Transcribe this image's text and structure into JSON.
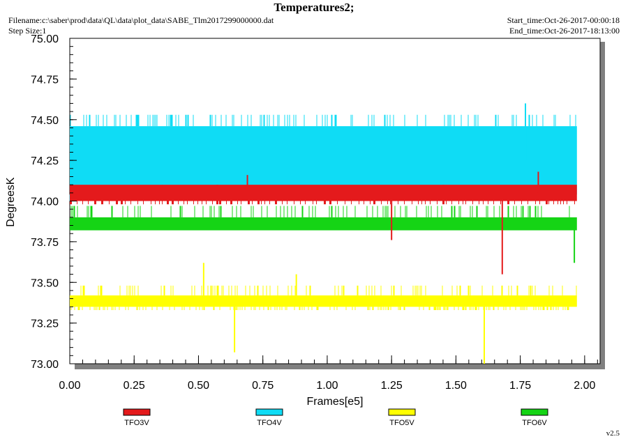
{
  "header": {
    "title": "Temperatures2;",
    "filename": "Filename:c:\\saber\\prod\\data\\QL\\data\\plot_data\\SABE_Tlm2017299000000.dat",
    "step_size": "Step Size:1",
    "start_time": "Start_time:Oct-26-2017-00:00:18",
    "end_time": "End_time:Oct-26-2017-18:13:00",
    "version": "v2.5"
  },
  "chart_data": {
    "type": "line",
    "xlabel": "Frames[e5]",
    "ylabel": "DegreesK",
    "xlim": [
      0.0,
      2.06
    ],
    "ylim": [
      73.0,
      75.0
    ],
    "x_ticks": [
      "0.00",
      "0.25",
      "0.50",
      "0.75",
      "1.00",
      "1.25",
      "1.50",
      "1.75",
      "2.00"
    ],
    "y_ticks": [
      "73.00",
      "73.25",
      "73.50",
      "73.75",
      "74.00",
      "74.25",
      "74.50",
      "74.75",
      "75.00"
    ],
    "grid": false,
    "legend_position": "bottom",
    "x_end": 1.97,
    "series": [
      {
        "name": "TFO3V",
        "color": "#e41a1c",
        "band_low": 74.0,
        "band_high": 74.1,
        "spikes": [
          [
            1.25,
            73.76
          ],
          [
            1.68,
            73.55
          ],
          [
            1.82,
            74.18
          ],
          [
            0.69,
            74.16
          ],
          [
            1.87,
            74.0
          ]
        ]
      },
      {
        "name": "TFO4V",
        "color": "#0fdcf5",
        "band_low": 74.04,
        "band_high": 74.46,
        "level_low": 74.0,
        "level_high": 74.53,
        "spikes": [
          [
            1.77,
            74.6
          ],
          [
            1.82,
            74.24
          ]
        ]
      },
      {
        "name": "TFO5V",
        "color": "#ffff00",
        "band_low": 73.35,
        "band_high": 73.42,
        "level_low": 73.33,
        "level_high": 73.48,
        "spikes": [
          [
            0.52,
            73.62
          ],
          [
            0.64,
            73.07
          ],
          [
            0.88,
            73.55
          ],
          [
            1.61,
            73.0
          ]
        ]
      },
      {
        "name": "TFO6V",
        "color": "#15d415",
        "band_low": 73.82,
        "band_high": 73.9,
        "level_low": 73.82,
        "level_high": 73.97,
        "spikes": [
          [
            1.96,
            73.62
          ]
        ]
      }
    ]
  }
}
